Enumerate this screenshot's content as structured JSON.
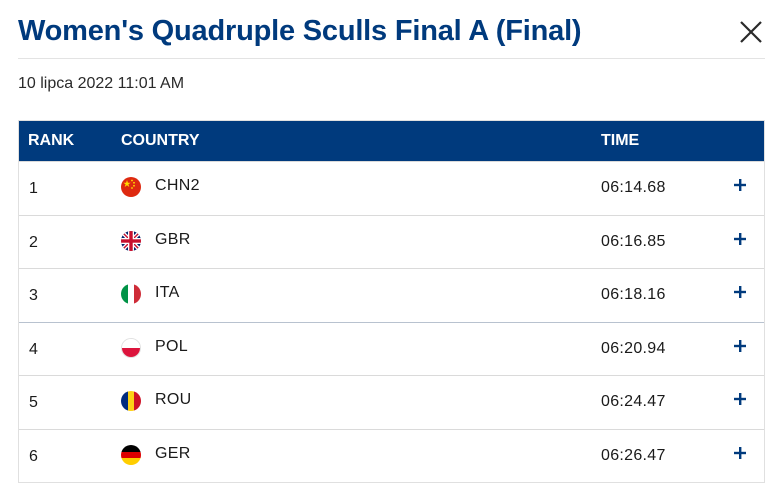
{
  "title": "Women's Quadruple Sculls Final A (Final)",
  "timestamp": "10 lipca 2022 11:01 AM",
  "table": {
    "headers": {
      "rank": "RANK",
      "country": "COUNTRY",
      "time": "TIME"
    },
    "rows": [
      {
        "rank": "1",
        "flag": "china-flag-icon",
        "code": "CHN2",
        "time": "06:14.68"
      },
      {
        "rank": "2",
        "flag": "great-britain-flag-icon",
        "code": "GBR",
        "time": "06:16.85"
      },
      {
        "rank": "3",
        "flag": "italy-flag-icon",
        "code": "ITA",
        "time": "06:18.16"
      },
      {
        "rank": "4",
        "flag": "poland-flag-icon",
        "code": "POL",
        "time": "06:20.94"
      },
      {
        "rank": "5",
        "flag": "romania-flag-icon",
        "code": "ROU",
        "time": "06:24.47"
      },
      {
        "rank": "6",
        "flag": "germany-flag-icon",
        "code": "GER",
        "time": "06:26.47"
      }
    ]
  },
  "colors": {
    "brand": "#003a7d",
    "divider": "#dadada"
  },
  "icons": {
    "close": "close-icon",
    "expand": "plus-icon"
  }
}
